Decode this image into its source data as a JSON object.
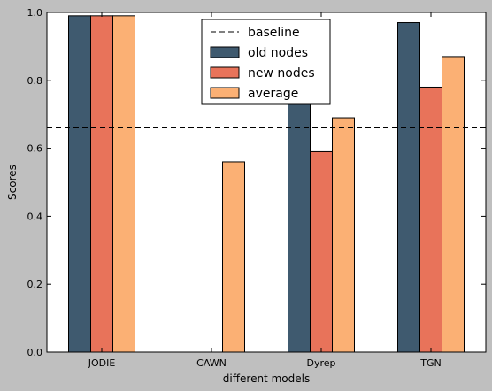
{
  "chart_data": {
    "type": "bar",
    "xlabel": "different models",
    "ylabel": "Scores",
    "ylim": [
      0,
      1.0
    ],
    "yticks": [
      "0.0",
      "0.2",
      "0.4",
      "0.6",
      "0.8",
      "1.0"
    ],
    "categories": [
      "JODIE",
      "CAWN",
      "Dyrep",
      "TGN"
    ],
    "series": [
      {
        "name": "old nodes",
        "color": "#3f5a6f",
        "values": [
          0.99,
          0.0,
          0.74,
          0.97
        ]
      },
      {
        "name": "new nodes",
        "color": "#e8735a",
        "values": [
          0.99,
          0.0,
          0.59,
          0.78
        ]
      },
      {
        "name": "average",
        "color": "#fbb074",
        "values": [
          0.99,
          0.56,
          0.69,
          0.87
        ]
      }
    ],
    "baseline": {
      "name": "baseline",
      "value": 0.66,
      "style": "dashed"
    },
    "legend": "top-center",
    "grid": false
  }
}
